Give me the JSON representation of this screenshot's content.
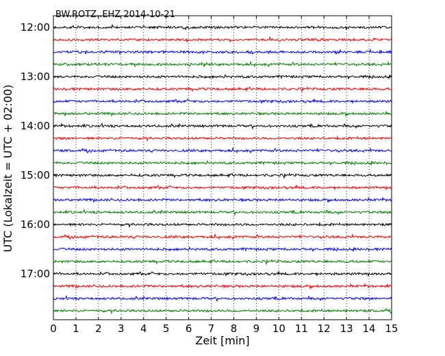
{
  "chart_data": {
    "type": "line",
    "title": "BW.ROTZ..EHZ 2014-10-21",
    "xlabel": "Zeit  [min]",
    "ylabel": "UTC (Lokalzeit = UTC + 02:00)",
    "xlim": [
      0,
      15
    ],
    "x_ticks": [
      0,
      1,
      2,
      3,
      4,
      5,
      6,
      7,
      8,
      9,
      10,
      11,
      12,
      13,
      14,
      15
    ],
    "y_tick_labels": [
      "12:00",
      "13:00",
      "14:00",
      "15:00",
      "16:00",
      "17:00"
    ],
    "trace_interval_minutes": 15,
    "start_time": "12:00",
    "trace_count": 24,
    "colors": [
      "#000000",
      "#ff0000",
      "#0000ff",
      "#008000"
    ],
    "grid": "vertical dotted"
  }
}
